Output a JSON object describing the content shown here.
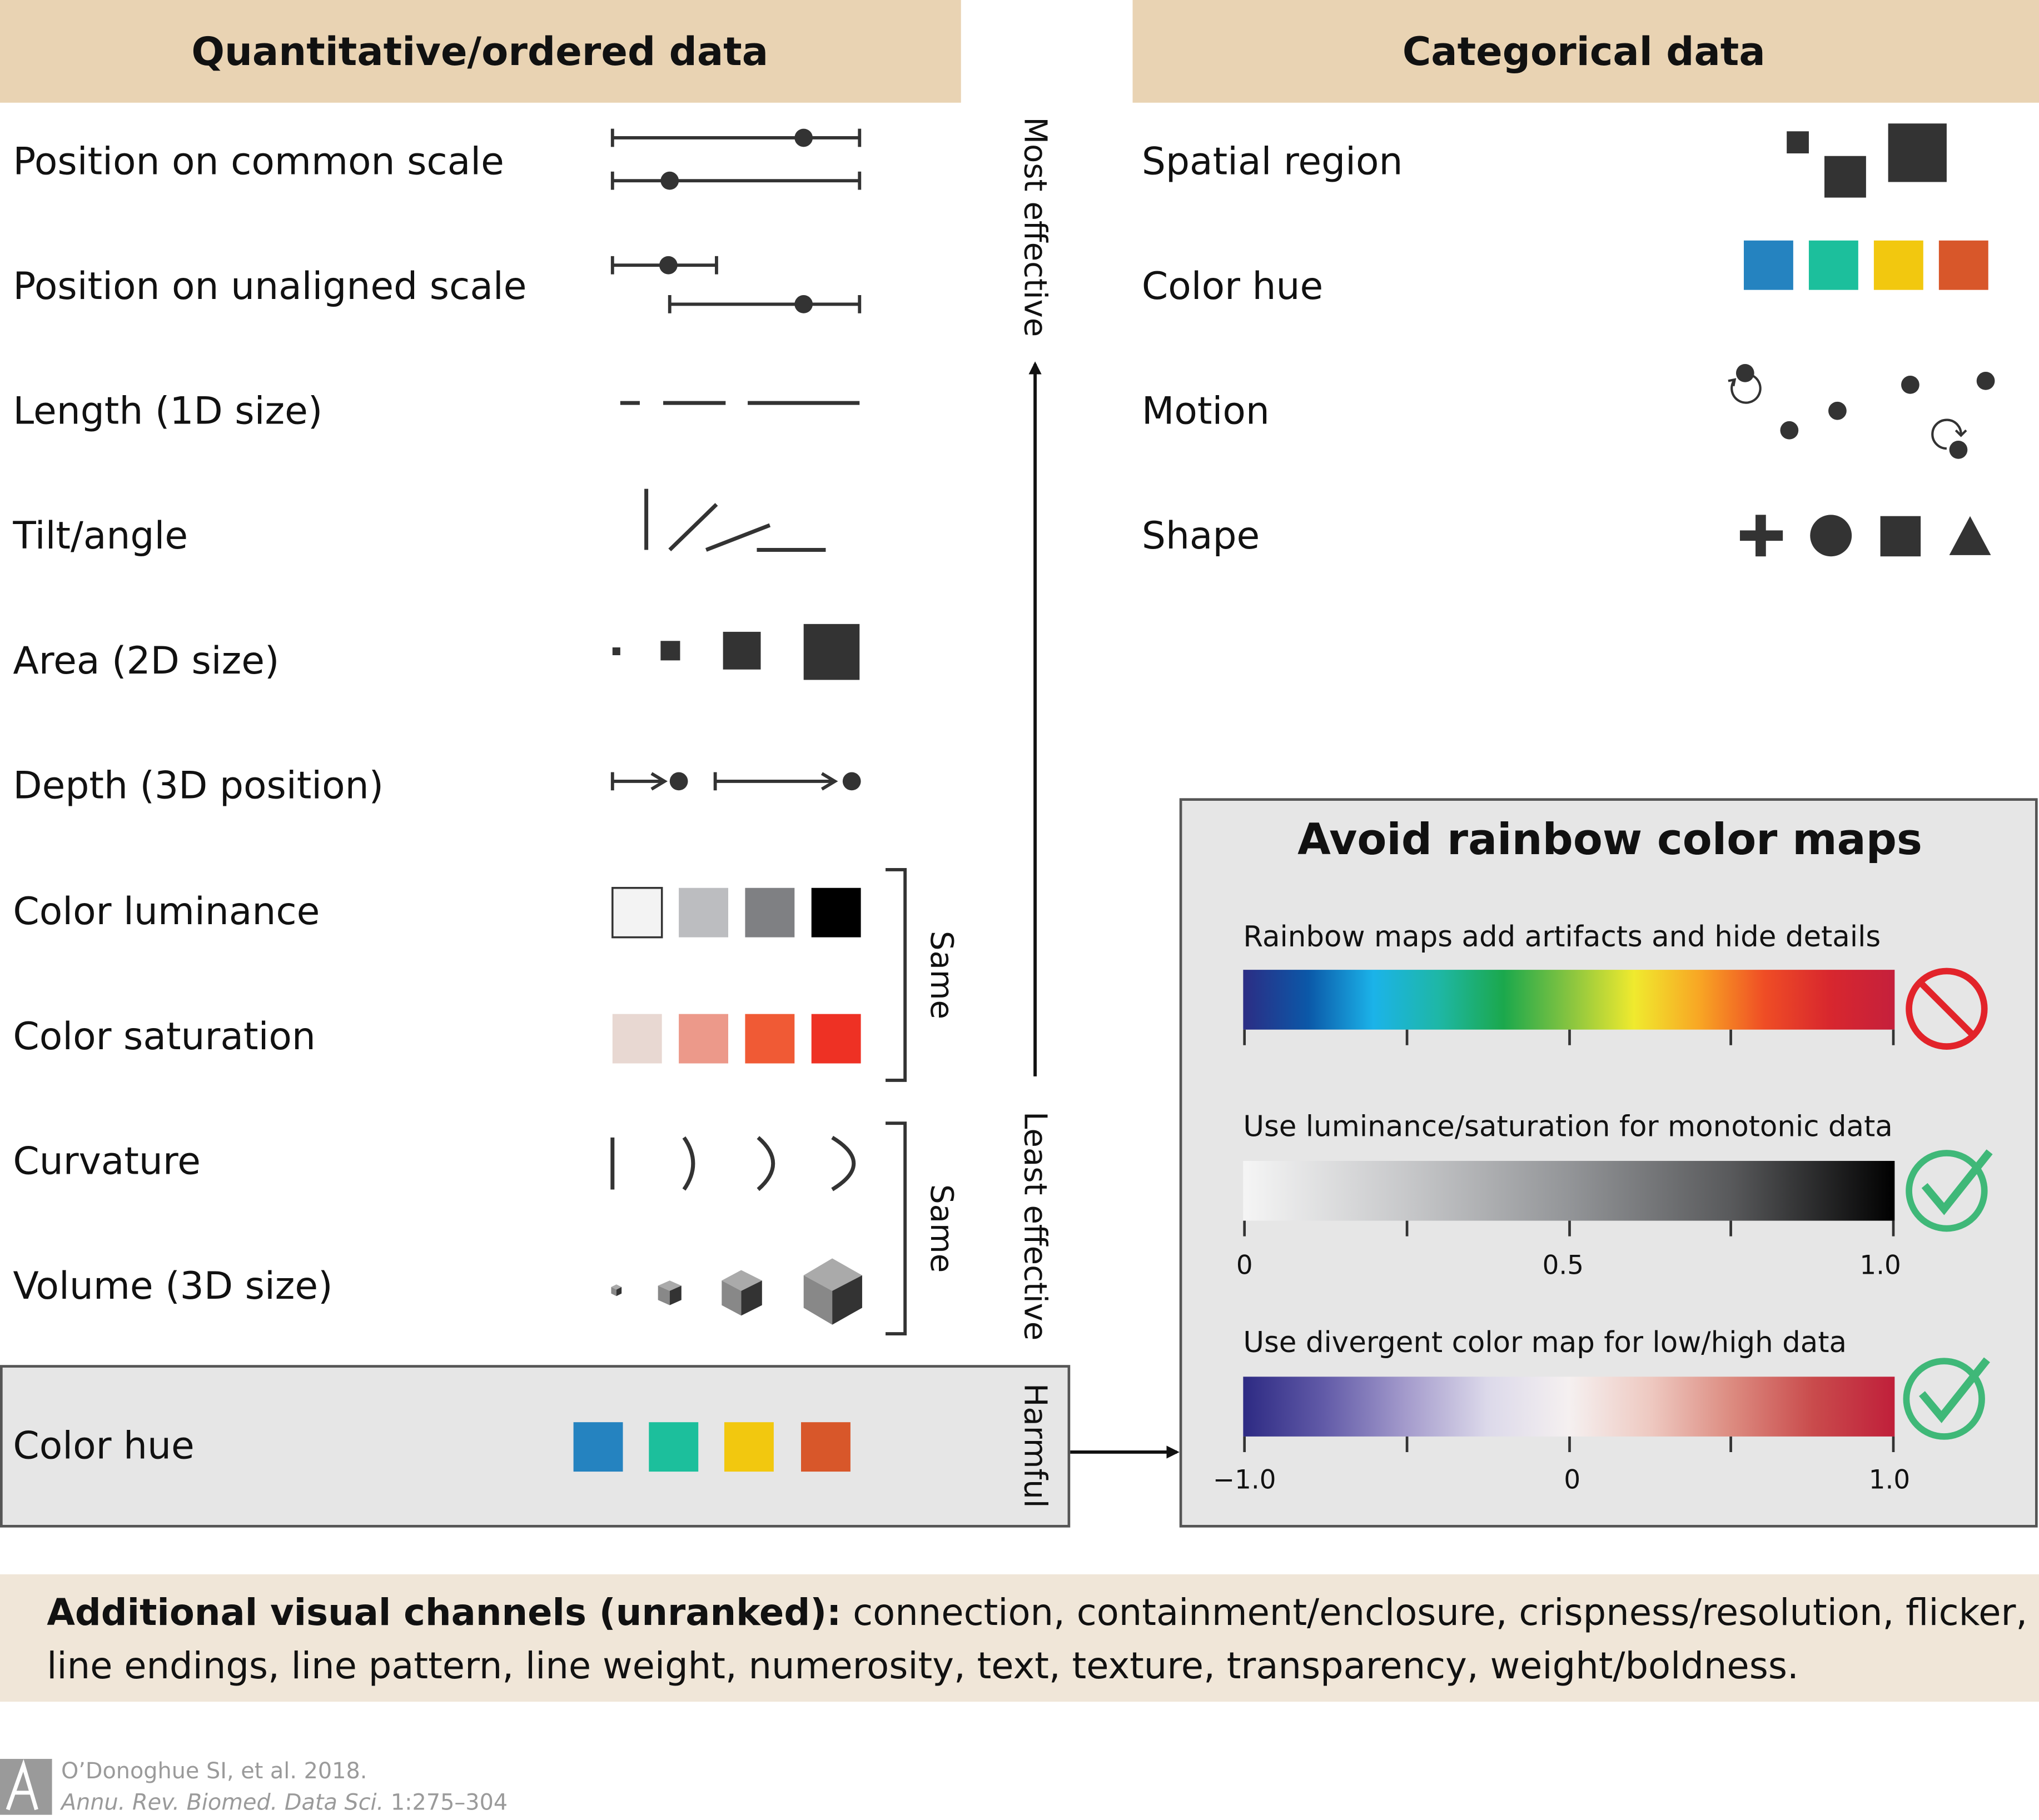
{
  "colors": {
    "header_bg": "#e9d3b3",
    "footer_bg": "#f0e6d8",
    "panel_gray": "#e6e6e6",
    "ink": "#333333",
    "hue_blue": "#2583c0",
    "hue_teal": "#1cbf9c",
    "hue_yellow": "#f2c80f",
    "hue_orange": "#d8572a",
    "no_red": "#e2232a",
    "check_green": "#3fb878"
  },
  "left": {
    "header": "Quantitative/ordered data",
    "rows": [
      "Position on common scale",
      "Position on unaligned scale",
      "Length (1D size)",
      "Tilt/angle",
      "Area (2D size)",
      "Depth (3D position)",
      "Color luminance",
      "Color saturation",
      "Curvature",
      "Volume (3D size)"
    ],
    "luminance_colors": [
      "#f3f3f3",
      "#bcbdc0",
      "#7f8083",
      "#000000"
    ],
    "saturation_colors": [
      "#e8d8d2",
      "#ec998a",
      "#f05a35",
      "#ee3124"
    ],
    "same_label_1": "Same",
    "same_label_2": "Same",
    "harmful": {
      "row_label": "Color hue",
      "side_label": "Harmful"
    }
  },
  "axis": {
    "most": "Most effective",
    "least": "Least effective"
  },
  "right": {
    "header": "Categorical data",
    "rows": [
      "Spatial region",
      "Color hue",
      "Motion",
      "Shape"
    ]
  },
  "rainbow_box": {
    "title": "Avoid rainbow color maps",
    "bars": [
      {
        "caption": "Rainbow maps add artifacts and hide details",
        "stops": [
          "#2c2d84",
          "#0b58a8",
          "#1bb3e9",
          "#1eb7a6",
          "#1ba84c",
          "#86c440",
          "#f0ea2e",
          "#f8a624",
          "#ef4d25",
          "#d8272e",
          "#c5203c"
        ],
        "ticks": [],
        "verdict": "avoid"
      },
      {
        "caption": "Use luminance/saturation for monotonic data",
        "stops": [
          "#f5f5f5",
          "#c7c8ca",
          "#939598",
          "#58595b",
          "#000000"
        ],
        "ticks": [
          "0",
          "0.5",
          "1.0"
        ],
        "verdict": "good"
      },
      {
        "caption": "Use divergent color map for low/high data",
        "stops": [
          "#2d2a83",
          "#625ba8",
          "#a49bcc",
          "#dcd9ea",
          "#f5f0f0",
          "#eec9c1",
          "#dc8b80",
          "#c94b4c",
          "#c01f3a"
        ],
        "ticks": [
          "−1.0",
          "0",
          "1.0"
        ],
        "verdict": "good"
      }
    ]
  },
  "footer": {
    "bold": "Additional visual channels (unranked):",
    "line1_rest": " connection, containment/enclosure, crispness/resolution, flicker,",
    "line2": "line endings, line pattern, line weight, numerosity, text, texture, transparency, weight/boldness."
  },
  "citation": {
    "line1": "O’Donoghue SI, et al. 2018.",
    "journal": "Annu. Rev. Biomed. Data Sci.",
    "pages": " 1:275–304"
  }
}
